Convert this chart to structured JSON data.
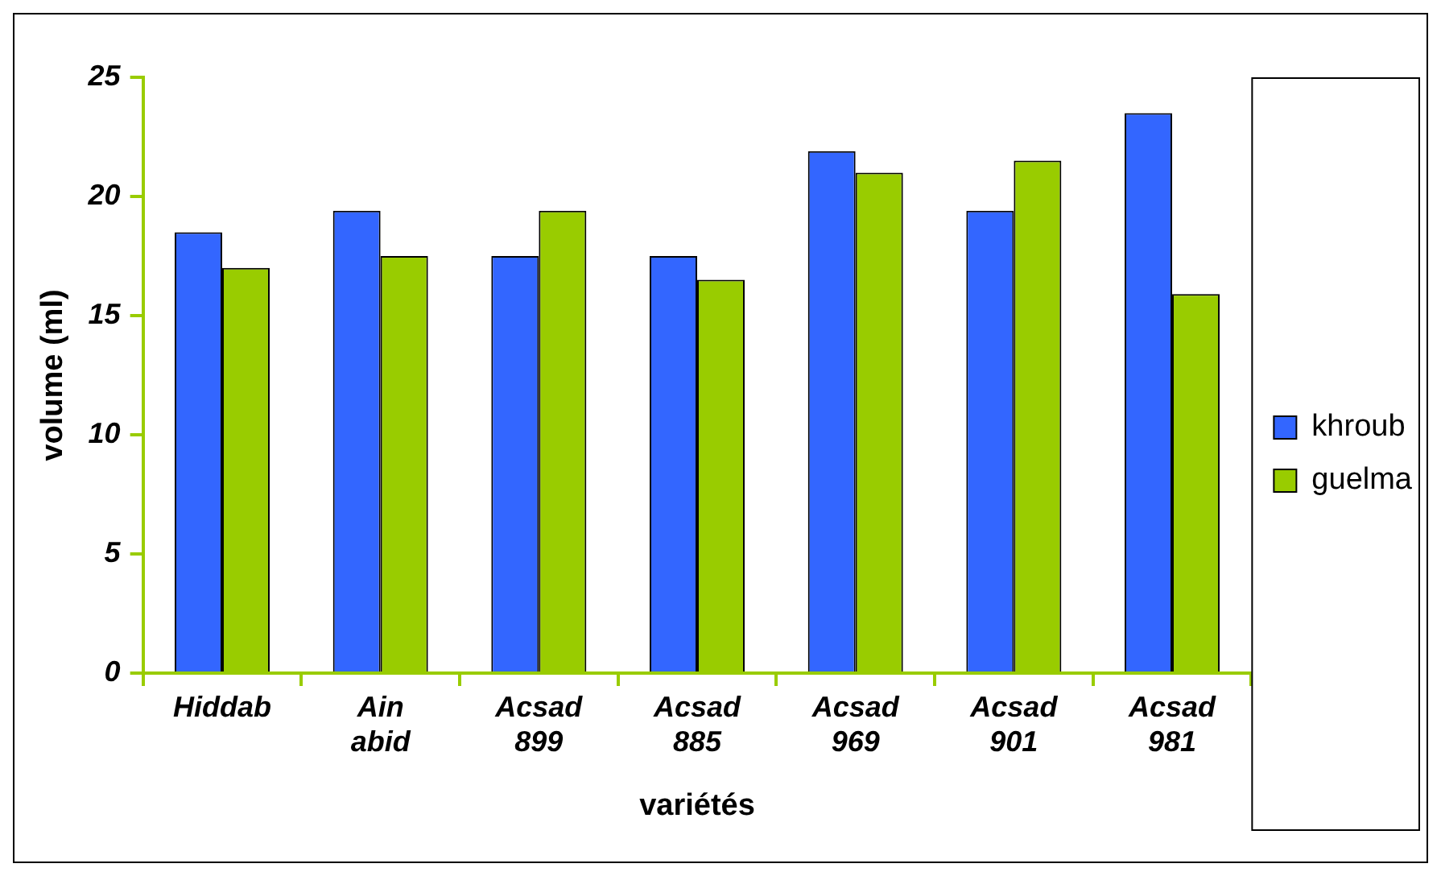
{
  "chart_data": {
    "type": "bar",
    "xlabel": "variétés",
    "ylabel": "volume (ml)",
    "categories": [
      "Hiddab",
      "Ain abid",
      "Acsad 899",
      "Acsad 885",
      "Acsad 969",
      "Acsad 901",
      "Acsad 981"
    ],
    "series": [
      {
        "name": "khroub",
        "color": "#3366ff",
        "values": [
          18.5,
          19.4,
          17.5,
          17.5,
          21.9,
          19.4,
          23.5
        ]
      },
      {
        "name": "guelma",
        "color": "#99cc00",
        "values": [
          17,
          17.5,
          19.4,
          16.5,
          21,
          21.5,
          15.9
        ]
      }
    ],
    "ylim": [
      0,
      25
    ],
    "yticks": [
      0,
      5,
      10,
      15,
      20,
      25
    ],
    "grid": false,
    "legend": "right"
  }
}
